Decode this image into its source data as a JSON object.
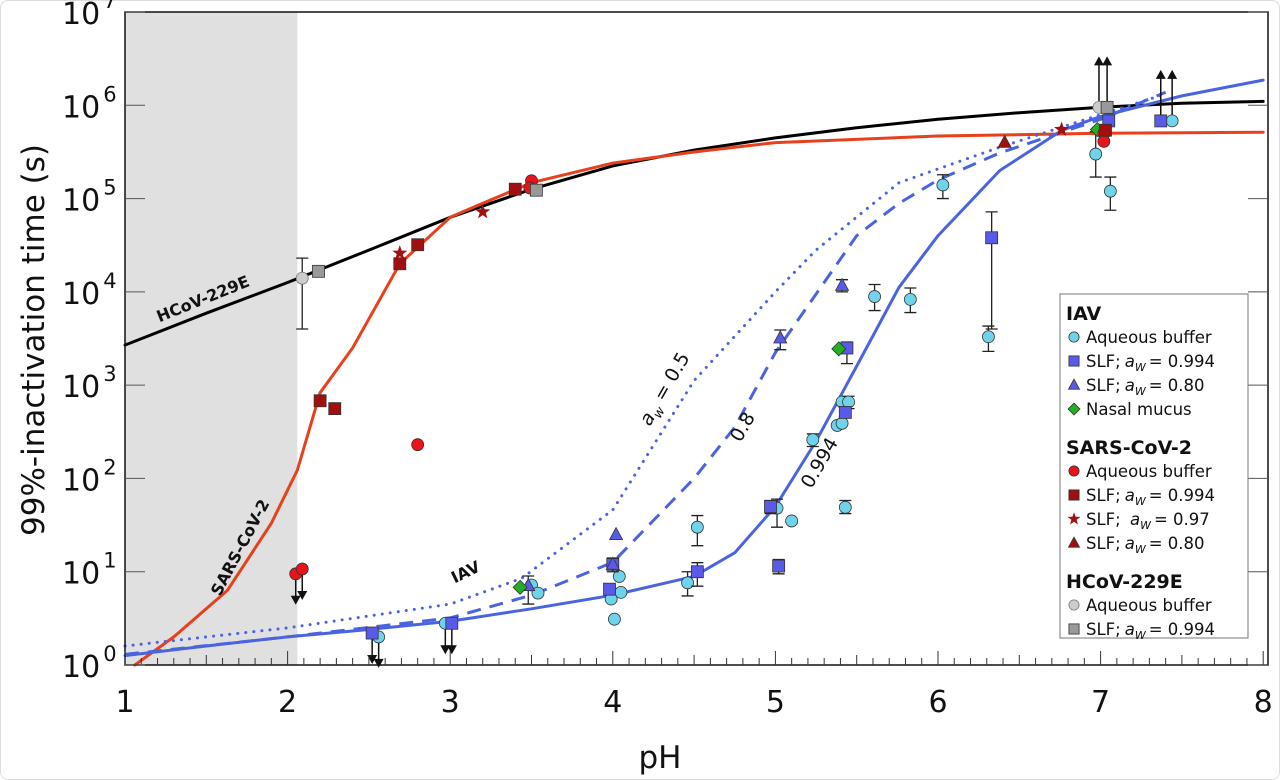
{
  "chart_data": {
    "type": "scatter",
    "xlabel": "pH",
    "ylabel": "99%-inactivation time (s)",
    "xlim": [
      1,
      8
    ],
    "ylim": [
      1,
      10000000
    ],
    "yscale": "log",
    "x_ticks": [
      "1",
      "2",
      "3",
      "4",
      "5",
      "6",
      "7",
      "8"
    ],
    "y_ticks": [
      {
        "base": "10",
        "exp": "0"
      },
      {
        "base": "10",
        "exp": "1"
      },
      {
        "base": "10",
        "exp": "2"
      },
      {
        "base": "10",
        "exp": "3"
      },
      {
        "base": "10",
        "exp": "4"
      },
      {
        "base": "10",
        "exp": "5"
      },
      {
        "base": "10",
        "exp": "6"
      },
      {
        "base": "10",
        "exp": "7"
      }
    ],
    "grid": false,
    "shaded_region": {
      "x": [
        1,
        2.06
      ],
      "color": "#e0e0e0"
    },
    "curves": [
      {
        "label": "HCoV-229E",
        "color": "#000000",
        "style": "solid",
        "x": [
          1,
          1.5,
          2,
          2.5,
          3,
          3.5,
          4,
          4.5,
          5,
          5.5,
          6,
          6.5,
          7,
          7.5,
          8
        ],
        "y": [
          2690,
          5900,
          12600,
          28000,
          63000,
          126000,
          224000,
          331000,
          447000,
          575000,
          708000,
          832000,
          955000,
          1050000,
          1100000
        ]
      },
      {
        "label": "SARS-CoV-2",
        "color": "#e8401c",
        "style": "solid",
        "x": [
          1.06,
          1.3,
          1.63,
          1.9,
          2.06,
          2.2,
          2.4,
          2.69,
          3.0,
          3.2,
          3.5,
          4,
          4.5,
          5,
          6,
          7,
          8
        ],
        "y": [
          1,
          2,
          6.3,
          33,
          123,
          830,
          2500,
          20000,
          63000,
          89000,
          148000,
          240000,
          316000,
          398000,
          468000,
          501000,
          513000
        ]
      },
      {
        "label": "0.994",
        "color": "#4a64e0",
        "style": "solid",
        "x": [
          1,
          1.5,
          2,
          2.5,
          3,
          3.5,
          4,
          4.5,
          4.75,
          5,
          5.25,
          5.5,
          5.76,
          6,
          6.38,
          6.76,
          7,
          7.5,
          8
        ],
        "y": [
          1.26,
          1.6,
          2.0,
          2.4,
          2.95,
          4.0,
          5.6,
          8.9,
          16,
          50,
          250,
          1600,
          11200,
          40000,
          200000,
          537000,
          760000,
          1260000,
          1860000
        ]
      },
      {
        "label": "0.8",
        "color": "#4a64e0",
        "style": "dashed",
        "x": [
          1,
          2,
          3,
          3.5,
          4,
          4.5,
          4.75,
          5,
          5.5,
          5.76,
          6,
          6.38,
          7,
          7.4
        ],
        "y": [
          1.3,
          2.0,
          3.2,
          5.6,
          12.6,
          100,
          355,
          2240,
          40000,
          89000,
          158000,
          309000,
          708000,
          1380000
        ]
      },
      {
        "label": "0.5",
        "color": "#4a64e0",
        "style": "dotted",
        "x": [
          1,
          2,
          3,
          3.44,
          4,
          4.5,
          5,
          5.25,
          5.76,
          6.38,
          7,
          7.4
        ],
        "y": [
          1.6,
          2.5,
          4.5,
          8.5,
          46,
          1120,
          10000,
          28000,
          148000,
          355000,
          794000,
          1320000
        ]
      }
    ],
    "annotations": {
      "hcov": "HCoV-229E",
      "sars": "SARS-CoV-2",
      "iav": "IAV",
      "aw_symbol": "a",
      "aw_sub": "w",
      "aw_eq": " = 0.5",
      "dashed": "0.8",
      "solid": "0.994"
    },
    "series": [
      {
        "group": "IAV",
        "name": "Aqueous buffer",
        "marker": "circle",
        "color": "#6fd3ea",
        "points": [
          {
            "x": 2.56,
            "y": 2.0,
            "limit": "upper"
          },
          {
            "x": 2.97,
            "y": 2.8,
            "limit": "upper"
          },
          {
            "x": 3.5,
            "y": 7.2
          },
          {
            "x": 3.54,
            "y": 5.9
          },
          {
            "x": 4.04,
            "y": 8.9
          },
          {
            "x": 4.05,
            "y": 6.0
          },
          {
            "x": 3.99,
            "y": 5.1
          },
          {
            "x": 4.01,
            "y": 3.1
          },
          {
            "x": 4.46,
            "y": 7.6,
            "err": [
              5.5,
              10
            ]
          },
          {
            "x": 4.52,
            "y": 30,
            "err": [
              19,
              40
            ]
          },
          {
            "x": 5.01,
            "y": 48,
            "err": [
              30,
              60
            ]
          },
          {
            "x": 5.1,
            "y": 35
          },
          {
            "x": 5.43,
            "y": 49,
            "err": [
              42,
              58
            ]
          },
          {
            "x": 5.23,
            "y": 260,
            "err": [
              220,
              300
            ]
          },
          {
            "x": 5.38,
            "y": 370
          },
          {
            "x": 5.41,
            "y": 390
          },
          {
            "x": 5.41,
            "y": 660
          },
          {
            "x": 5.45,
            "y": 660,
            "err": [
              560,
              760
            ]
          },
          {
            "x": 5.61,
            "y": 8900,
            "err": [
              6300,
              12000
            ]
          },
          {
            "x": 5.83,
            "y": 8300,
            "err": [
              6000,
              11000
            ]
          },
          {
            "x": 6.03,
            "y": 140000,
            "err": [
              100000,
              180000
            ]
          },
          {
            "x": 6.31,
            "y": 3300,
            "err": [
              2300,
              4300
            ]
          },
          {
            "x": 6.97,
            "y": 300000,
            "err": [
              170000,
              520000
            ]
          },
          {
            "x": 7.06,
            "y": 120000,
            "err": [
              75000,
              170000
            ]
          },
          {
            "x": 7.44,
            "y": 680000,
            "limit": "lower"
          }
        ]
      },
      {
        "group": "IAV",
        "name": "SLF; a_W = 0.994",
        "aw": "0.994",
        "marker": "square",
        "color": "#5a5ae8",
        "points": [
          {
            "x": 2.52,
            "y": 2.2,
            "limit": "upper"
          },
          {
            "x": 3.01,
            "y": 2.8,
            "limit": "upper"
          },
          {
            "x": 3.98,
            "y": 6.5
          },
          {
            "x": 4.0,
            "y": 12
          },
          {
            "x": 4.52,
            "y": 10,
            "err": [
              7,
              12.5
            ]
          },
          {
            "x": 4.97,
            "y": 50,
            "err": [
              42,
              58
            ]
          },
          {
            "x": 5.02,
            "y": 11.5,
            "err": [
              9.5,
              13.5
            ]
          },
          {
            "x": 5.43,
            "y": 510
          },
          {
            "x": 5.44,
            "y": 2500,
            "err": [
              1700,
              2900
            ]
          },
          {
            "x": 6.33,
            "y": 38000,
            "err": [
              4000,
              72000
            ]
          },
          {
            "x": 7.05,
            "y": 680000
          },
          {
            "x": 7.37,
            "y": 680000,
            "limit": "lower"
          }
        ]
      },
      {
        "group": "IAV",
        "name": "SLF; a_W = 0.80",
        "aw": "0.80",
        "marker": "triangle",
        "color": "#5a5ae8",
        "points": [
          {
            "x": 3.48,
            "y": 7.1,
            "err": [
              4.5,
              9
            ]
          },
          {
            "x": 4.02,
            "y": 25
          },
          {
            "x": 4.0,
            "y": 12,
            "err": [
              10,
              14
            ]
          },
          {
            "x": 5.03,
            "y": 3200,
            "err": [
              2400,
              3900
            ]
          },
          {
            "x": 5.41,
            "y": 11700,
            "err": [
              10000,
              13500
            ]
          }
        ]
      },
      {
        "group": "IAV",
        "name": "Nasal mucus",
        "marker": "diamond",
        "color": "#22b022",
        "points": [
          {
            "x": 3.43,
            "y": 6.8
          },
          {
            "x": 5.39,
            "y": 2450
          },
          {
            "x": 6.98,
            "y": 550000
          }
        ]
      },
      {
        "group": "SARS-CoV-2",
        "name": "Aqueous buffer",
        "marker": "circle",
        "color": "#e8141a",
        "points": [
          {
            "x": 2.05,
            "y": 9.5,
            "limit": "upper"
          },
          {
            "x": 2.09,
            "y": 10.7,
            "limit": "upper"
          },
          {
            "x": 2.8,
            "y": 230
          },
          {
            "x": 3.5,
            "y": 155000
          },
          {
            "x": 3.49,
            "y": 130000
          },
          {
            "x": 7.02,
            "y": 500000
          },
          {
            "x": 7.02,
            "y": 410000
          }
        ]
      },
      {
        "group": "SARS-CoV-2",
        "name": "SLF; a_W = 0.994",
        "aw": "0.994",
        "marker": "square",
        "color": "#a01010",
        "points": [
          {
            "x": 2.2,
            "y": 680
          },
          {
            "x": 2.29,
            "y": 560
          },
          {
            "x": 2.69,
            "y": 20000
          },
          {
            "x": 2.8,
            "y": 32000
          },
          {
            "x": 3.4,
            "y": 126000
          },
          {
            "x": 7.03,
            "y": 540000
          }
        ]
      },
      {
        "group": "SARS-CoV-2",
        "name": "SLF;  a_W = 0.97",
        "aw": "0.97",
        "marker": "star",
        "color": "#a01010",
        "points": [
          {
            "x": 2.69,
            "y": 26000
          },
          {
            "x": 3.2,
            "y": 72000
          },
          {
            "x": 6.76,
            "y": 550000
          }
        ]
      },
      {
        "group": "SARS-CoV-2",
        "name": "SLF; a_W = 0.80",
        "aw": "0.80",
        "marker": "triangle",
        "color": "#a01010",
        "points": [
          {
            "x": 6.41,
            "y": 400000
          }
        ]
      },
      {
        "group": "HCoV-229E",
        "name": "Aqueous buffer",
        "marker": "circle",
        "color": "#cccccc",
        "points": [
          {
            "x": 2.09,
            "y": 14000,
            "err": [
              4000,
              23000
            ]
          },
          {
            "x": 6.99,
            "y": 950000,
            "limit": "lower"
          }
        ]
      },
      {
        "group": "HCoV-229E",
        "name": "SLF; a_W = 0.994",
        "aw": "0.994",
        "marker": "square",
        "color": "#999999",
        "points": [
          {
            "x": 2.19,
            "y": 16600
          },
          {
            "x": 3.53,
            "y": 123000
          },
          {
            "x": 7.04,
            "y": 950000,
            "limit": "lower"
          }
        ]
      }
    ],
    "legend": {
      "position": "right",
      "groups": [
        {
          "title": "IAV",
          "items": [
            {
              "marker": "circle",
              "color": "#6fd3ea",
              "text": "Aqueous buffer"
            },
            {
              "marker": "square",
              "color": "#5a5ae8",
              "text": "SLF;",
              "aw": "= 0.994"
            },
            {
              "marker": "triangle",
              "color": "#5a5ae8",
              "text": "SLF;",
              "aw": "= 0.80"
            },
            {
              "marker": "diamond",
              "color": "#22b022",
              "text": "Nasal mucus"
            }
          ]
        },
        {
          "title": "SARS-CoV-2",
          "items": [
            {
              "marker": "circle",
              "color": "#e8141a",
              "text": "Aqueous buffer"
            },
            {
              "marker": "square",
              "color": "#a01010",
              "text": "SLF;",
              "aw": "= 0.994"
            },
            {
              "marker": "star",
              "color": "#a01010",
              "text": "SLF; ",
              "aw": "= 0.97"
            },
            {
              "marker": "triangle",
              "color": "#a01010",
              "text": "SLF;",
              "aw": "= 0.80"
            }
          ]
        },
        {
          "title": "HCoV-229E",
          "items": [
            {
              "marker": "circle",
              "color": "#cccccc",
              "text": "Aqueous buffer"
            },
            {
              "marker": "square",
              "color": "#999999",
              "text": "SLF;",
              "aw": "= 0.994"
            }
          ]
        }
      ],
      "aw_symbol": "a",
      "aw_sub": "W"
    }
  }
}
